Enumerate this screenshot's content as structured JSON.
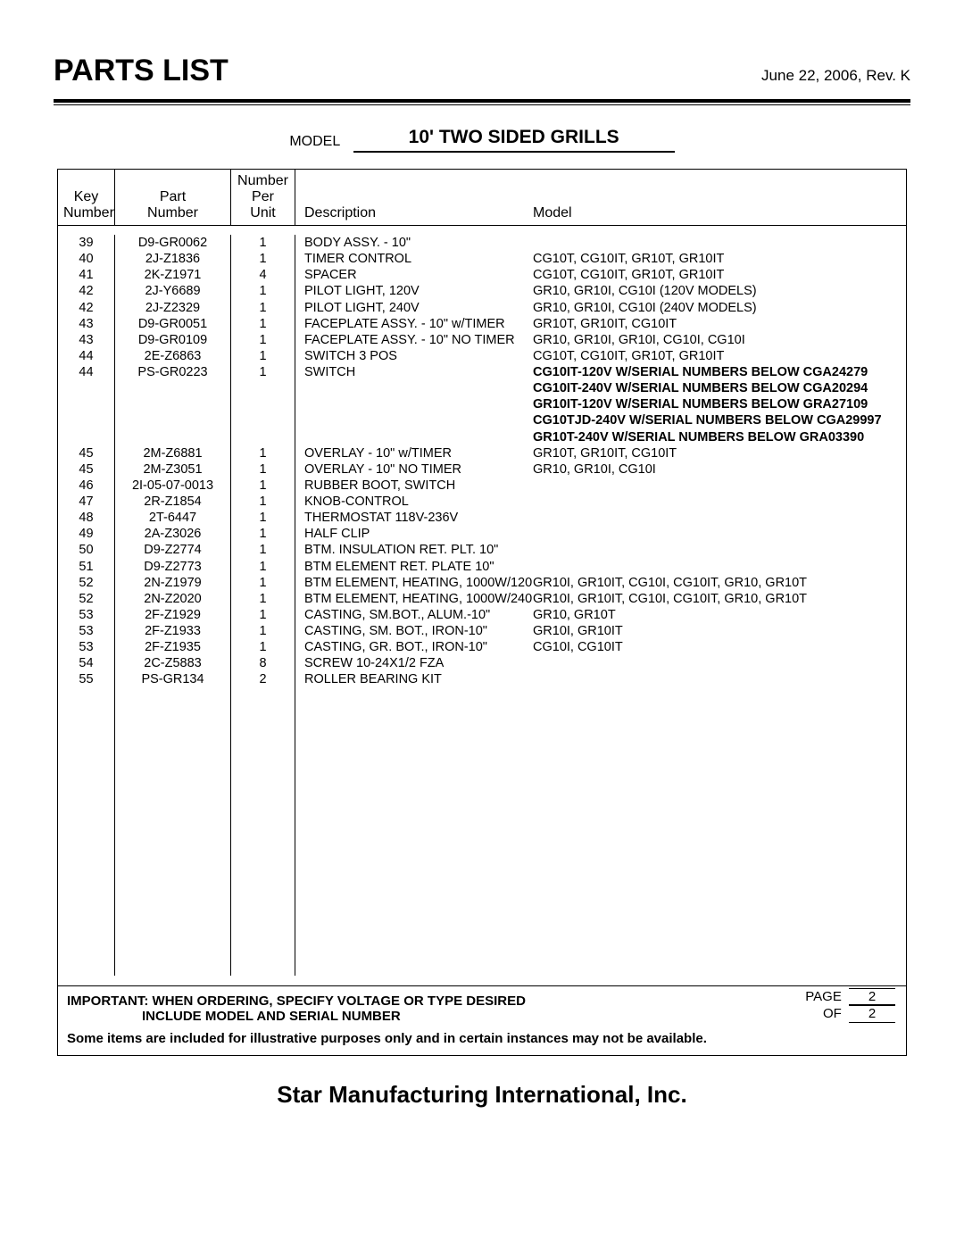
{
  "header": {
    "title": "PARTS LIST",
    "rev_date": "June 22, 2006, Rev. K",
    "model_label": "MODEL",
    "model_name": "10' TWO SIDED GRILLS"
  },
  "columns": {
    "key1": "Key",
    "key2": "Number",
    "part1": "Part",
    "part2": "Number",
    "qty1": "Number",
    "qty2": "Per",
    "qty3": "Unit",
    "desc": "Description",
    "model": "Model"
  },
  "rows": [
    {
      "k": "39",
      "p": "D9-GR0062",
      "q": "1",
      "d": "BODY ASSY. - 10\"",
      "m": ""
    },
    {
      "k": "40",
      "p": "2J-Z1836",
      "q": "1",
      "d": "TIMER CONTROL",
      "m": "CG10T, CG10IT, GR10T, GR10IT"
    },
    {
      "k": "41",
      "p": "2K-Z1971",
      "q": "4",
      "d": "SPACER",
      "m": "CG10T, CG10IT, GR10T, GR10IT"
    },
    {
      "k": "42",
      "p": "2J-Y6689",
      "q": "1",
      "d": "PILOT LIGHT, 120V",
      "m": "GR10, GR10I, CG10I (120V MODELS)"
    },
    {
      "k": "42",
      "p": "2J-Z2329",
      "q": "1",
      "d": "PILOT LIGHT, 240V",
      "m": "GR10, GR10I, CG10I (240V MODELS)"
    },
    {
      "k": "43",
      "p": "D9-GR0051",
      "q": "1",
      "d": "FACEPLATE ASSY. - 10\" w/TIMER",
      "m": "GR10T, GR10IT,  CG10IT"
    },
    {
      "k": "43",
      "p": "D9-GR0109",
      "q": "1",
      "d": "FACEPLATE ASSY. - 10\" NO TIMER",
      "m": "GR10, GR10I, GR10I, CG10I, CG10I"
    },
    {
      "k": "44",
      "p": "2E-Z6863",
      "q": "1",
      "d": "SWITCH 3 POS",
      "m": "CG10T, CG10IT, GR10T, GR10IT"
    },
    {
      "k": "44",
      "p": "PS-GR0223",
      "q": "1",
      "d": "SWITCH",
      "m": "CG10IT-120V W/SERIAL NUMBERS BELOW CGA24279",
      "bold": true
    },
    {
      "k": "",
      "p": "",
      "q": "",
      "d": "",
      "m": "CG10IT-240V W/SERIAL NUMBERS BELOW CGA20294",
      "bold": true
    },
    {
      "k": "",
      "p": "",
      "q": "",
      "d": "",
      "m": "GR10IT-120V W/SERIAL NUMBERS BELOW GRA27109",
      "bold": true
    },
    {
      "k": "",
      "p": "",
      "q": "",
      "d": "",
      "m": "CG10TJD-240V W/SERIAL NUMBERS BELOW CGA29997",
      "bold": true
    },
    {
      "k": "",
      "p": "",
      "q": "",
      "d": "",
      "m": "GR10T-240V W/SERIAL NUMBERS BELOW GRA03390",
      "bold": true
    },
    {
      "k": "45",
      "p": "2M-Z6881",
      "q": "1",
      "d": "OVERLAY - 10\" w/TIMER",
      "m": "GR10T, GR10IT, CG10IT"
    },
    {
      "k": "45",
      "p": "2M-Z3051",
      "q": "1",
      "d": "OVERLAY - 10\" NO TIMER",
      "m": "GR10, GR10I, CG10I"
    },
    {
      "k": "46",
      "p": "2I-05-07-0013",
      "q": "1",
      "d": "RUBBER BOOT, SWITCH",
      "m": ""
    },
    {
      "k": "47",
      "p": "2R-Z1854",
      "q": "1",
      "d": "KNOB-CONTROL",
      "m": ""
    },
    {
      "k": "48",
      "p": "2T-6447",
      "q": "1",
      "d": "THERMOSTAT 118V-236V",
      "m": ""
    },
    {
      "k": "49",
      "p": "2A-Z3026",
      "q": "1",
      "d": "HALF CLIP",
      "m": ""
    },
    {
      "k": "50",
      "p": "D9-Z2774",
      "q": "1",
      "d": "BTM. INSULATION RET. PLT. 10\"",
      "m": ""
    },
    {
      "k": "51",
      "p": "D9-Z2773",
      "q": "1",
      "d": "BTM ELEMENT RET. PLATE 10\"",
      "m": ""
    },
    {
      "k": "52",
      "p": "2N-Z1979",
      "q": "1",
      "d": "BTM ELEMENT, HEATING, 1000W/120",
      "m": "GR10I, GR10IT, CG10I, CG10IT, GR10, GR10T"
    },
    {
      "k": "52",
      "p": "2N-Z2020",
      "q": "1",
      "d": "BTM ELEMENT, HEATING, 1000W/240",
      "m": "GR10I, GR10IT, CG10I, CG10IT, GR10, GR10T"
    },
    {
      "k": "53",
      "p": "2F-Z1929",
      "q": "1",
      "d": "CASTING, SM.BOT., ALUM.-10\"",
      "m": "GR10, GR10T"
    },
    {
      "k": "53",
      "p": "2F-Z1933",
      "q": "1",
      "d": "CASTING, SM. BOT., IRON-10\"",
      "m": "GR10I, GR10IT"
    },
    {
      "k": "53",
      "p": "2F-Z1935",
      "q": "1",
      "d": "CASTING, GR. BOT., IRON-10\"",
      "m": "CG10I, CG10IT"
    },
    {
      "k": "54",
      "p": "2C-Z5883",
      "q": "8",
      "d": "SCREW 10-24X1/2 FZA",
      "m": ""
    },
    {
      "k": "55",
      "p": "PS-GR134",
      "q": "2",
      "d": "ROLLER BEARING KIT",
      "m": ""
    }
  ],
  "notes": {
    "important_line1": "IMPORTANT: WHEN ORDERING, SPECIFY VOLTAGE OR TYPE DESIRED",
    "important_line2": "INCLUDE MODEL AND SERIAL NUMBER",
    "disclaimer": "Some items are included for illustrative purposes only and in certain instances may not be available.",
    "page_label": "PAGE",
    "of_label": "OF",
    "page_num": "2",
    "page_total": "2"
  },
  "footer": {
    "company": "Star Manufacturing International, Inc."
  }
}
